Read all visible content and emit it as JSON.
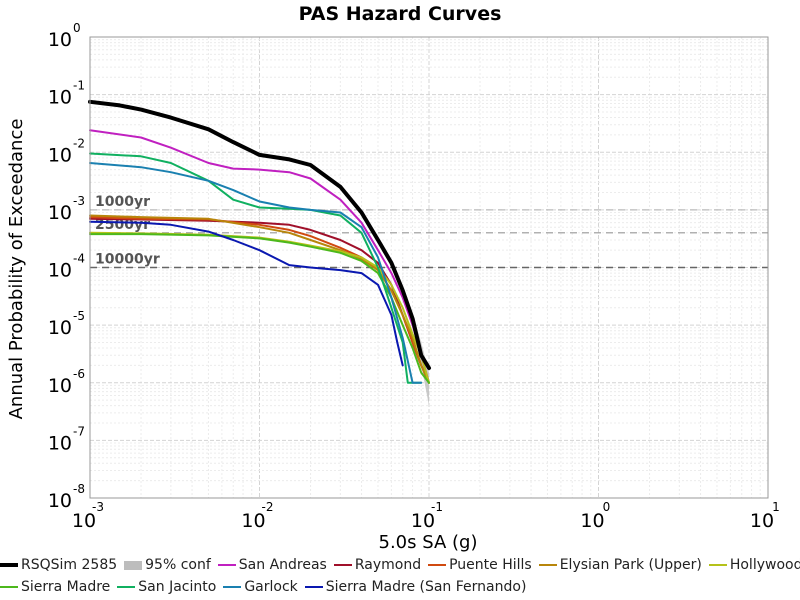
{
  "chart_data": {
    "type": "line",
    "title": "PAS Hazard Curves",
    "xlabel": "5.0s SA (g)",
    "ylabel": "Annual Probability of Exceedance",
    "xscale": "log",
    "yscale": "log",
    "xlim": [
      0.001,
      10
    ],
    "ylim": [
      1e-08,
      1
    ],
    "grid": true,
    "x_ticks": [
      {
        "base": "10",
        "exp": "-3"
      },
      {
        "base": "10",
        "exp": "-2"
      },
      {
        "base": "10",
        "exp": "-1"
      },
      {
        "base": "10",
        "exp": "0"
      },
      {
        "base": "10",
        "exp": "1"
      }
    ],
    "y_ticks": [
      {
        "base": "10",
        "exp": "0"
      },
      {
        "base": "10",
        "exp": "-1"
      },
      {
        "base": "10",
        "exp": "-2"
      },
      {
        "base": "10",
        "exp": "-3"
      },
      {
        "base": "10",
        "exp": "-4"
      },
      {
        "base": "10",
        "exp": "-5"
      },
      {
        "base": "10",
        "exp": "-6"
      },
      {
        "base": "10",
        "exp": "-7"
      },
      {
        "base": "10",
        "exp": "-8"
      }
    ],
    "return_periods": [
      {
        "label": "1000yr",
        "y": 0.001
      },
      {
        "label": "2500yr",
        "y": 0.0004
      },
      {
        "label": "10000yr",
        "y": 0.0001
      }
    ],
    "confidence_band": {
      "name": "95% conf",
      "color": "#bdbdbd",
      "x": [
        0.06,
        0.07,
        0.08,
        0.09,
        0.1
      ],
      "upper": [
        0.00013,
        5e-05,
        1.6e-05,
        5e-06,
        1.5e-06
      ],
      "lower": [
        0.00011,
        3.5e-05,
        1e-05,
        2e-06,
        4e-07
      ]
    },
    "series": [
      {
        "name": "RSQSim 2585",
        "color": "#000000",
        "width": 4,
        "x": [
          0.001,
          0.0015,
          0.002,
          0.003,
          0.005,
          0.007,
          0.01,
          0.015,
          0.02,
          0.03,
          0.04,
          0.05,
          0.06,
          0.07,
          0.08,
          0.09,
          0.1
        ],
        "y": [
          0.075,
          0.065,
          0.055,
          0.04,
          0.025,
          0.015,
          0.009,
          0.0075,
          0.006,
          0.0025,
          0.0009,
          0.0003,
          0.00012,
          4e-05,
          1.3e-05,
          3e-06,
          1.8e-06
        ]
      },
      {
        "name": "San Andreas",
        "color": "#c020c0",
        "width": 2,
        "x": [
          0.001,
          0.002,
          0.003,
          0.005,
          0.007,
          0.01,
          0.015,
          0.02,
          0.03,
          0.04,
          0.05,
          0.06,
          0.07,
          0.08,
          0.09,
          0.1
        ],
        "y": [
          0.024,
          0.018,
          0.012,
          0.0065,
          0.0052,
          0.005,
          0.0045,
          0.0035,
          0.0015,
          0.0006,
          0.0002,
          8e-05,
          3e-05,
          1e-05,
          3e-06,
          1e-06
        ]
      },
      {
        "name": "Raymond",
        "color": "#a0102a",
        "width": 2,
        "x": [
          0.001,
          0.002,
          0.005,
          0.01,
          0.015,
          0.02,
          0.03,
          0.04,
          0.05,
          0.06,
          0.07,
          0.08,
          0.09,
          0.1
        ],
        "y": [
          0.0007,
          0.00068,
          0.00065,
          0.0006,
          0.00055,
          0.00045,
          0.0003,
          0.0002,
          0.00012,
          5e-05,
          1.5e-05,
          5e-06,
          2e-06,
          1e-06
        ]
      },
      {
        "name": "Puente Hills",
        "color": "#d04a10",
        "width": 2,
        "x": [
          0.001,
          0.002,
          0.005,
          0.01,
          0.015,
          0.02,
          0.03,
          0.04,
          0.05,
          0.06,
          0.07,
          0.08,
          0.09,
          0.1
        ],
        "y": [
          0.00075,
          0.0007,
          0.00068,
          0.00055,
          0.00045,
          0.00035,
          0.00022,
          0.00015,
          9e-05,
          4e-05,
          1.5e-05,
          5e-06,
          2e-06,
          1e-06
        ]
      },
      {
        "name": "Elysian Park (Upper)",
        "color": "#b8860b",
        "width": 2,
        "x": [
          0.001,
          0.002,
          0.005,
          0.01,
          0.015,
          0.02,
          0.03,
          0.04,
          0.05,
          0.06,
          0.07,
          0.08,
          0.09,
          0.1
        ],
        "y": [
          0.0008,
          0.00075,
          0.0007,
          0.0005,
          0.0004,
          0.0003,
          0.0002,
          0.00014,
          9e-05,
          4e-05,
          1.5e-05,
          6e-06,
          2e-06,
          1e-06
        ]
      },
      {
        "name": "Hollywood",
        "color": "#b5c21a",
        "width": 2,
        "x": [
          0.001,
          0.002,
          0.005,
          0.01,
          0.015,
          0.02,
          0.03,
          0.04,
          0.05,
          0.06,
          0.07,
          0.08,
          0.09,
          0.1
        ],
        "y": [
          0.0004,
          0.00039,
          0.00037,
          0.00033,
          0.00028,
          0.00024,
          0.00019,
          0.00015,
          0.0001,
          5e-05,
          2e-05,
          7e-06,
          3e-06,
          1e-06
        ]
      },
      {
        "name": "Sierra Madre",
        "color": "#4cb81c",
        "width": 2,
        "x": [
          0.001,
          0.002,
          0.005,
          0.01,
          0.015,
          0.02,
          0.03,
          0.04,
          0.05,
          0.06,
          0.07,
          0.08,
          0.09,
          0.1
        ],
        "y": [
          0.00038,
          0.00038,
          0.00036,
          0.00032,
          0.00027,
          0.00023,
          0.00018,
          0.00013,
          8e-05,
          3e-05,
          1e-05,
          4e-06,
          1.5e-06,
          1e-06
        ]
      },
      {
        "name": "San Jacinto",
        "color": "#10b060",
        "width": 2,
        "x": [
          0.001,
          0.002,
          0.003,
          0.005,
          0.007,
          0.01,
          0.015,
          0.02,
          0.03,
          0.04,
          0.05,
          0.06,
          0.07,
          0.075,
          0.08,
          0.09
        ],
        "y": [
          0.0095,
          0.0085,
          0.0065,
          0.0032,
          0.0015,
          0.0011,
          0.00105,
          0.001,
          0.0008,
          0.0004,
          0.0001,
          2e-05,
          5e-06,
          1e-06,
          1e-06,
          1e-06
        ]
      },
      {
        "name": "Garlock",
        "color": "#1a80b0",
        "width": 2,
        "x": [
          0.001,
          0.002,
          0.003,
          0.005,
          0.007,
          0.01,
          0.015,
          0.02,
          0.03,
          0.04,
          0.05,
          0.06,
          0.07,
          0.08,
          0.09
        ],
        "y": [
          0.0065,
          0.0055,
          0.0045,
          0.0032,
          0.0022,
          0.0014,
          0.0011,
          0.001,
          0.0009,
          0.0005,
          0.00015,
          3e-05,
          6e-06,
          1e-06,
          1e-06
        ]
      },
      {
        "name": "Sierra Madre (San Fernando)",
        "color": "#0a18b0",
        "width": 2,
        "x": [
          0.001,
          0.002,
          0.003,
          0.005,
          0.007,
          0.01,
          0.015,
          0.02,
          0.03,
          0.04,
          0.05,
          0.06,
          0.065,
          0.07
        ],
        "y": [
          0.00062,
          0.0006,
          0.00055,
          0.00042,
          0.0003,
          0.0002,
          0.00011,
          0.0001,
          9e-05,
          8e-05,
          5e-05,
          1.5e-05,
          5e-06,
          2e-06
        ]
      }
    ],
    "legend_placement": "bottom",
    "legend": [
      {
        "label": "RSQSim 2585",
        "color": "#000000",
        "style": "line-thick"
      },
      {
        "label": "95% conf",
        "color": "#bdbdbd",
        "style": "band"
      },
      {
        "label": "San Andreas",
        "color": "#c020c0",
        "style": "line"
      },
      {
        "label": "Raymond",
        "color": "#a0102a",
        "style": "line"
      },
      {
        "label": "Puente Hills",
        "color": "#d04a10",
        "style": "line"
      },
      {
        "label": "Elysian Park (Upper)",
        "color": "#b8860b",
        "style": "line"
      },
      {
        "label": "Hollywood",
        "color": "#b5c21a",
        "style": "line"
      },
      {
        "label": "Sierra Madre",
        "color": "#4cb81c",
        "style": "line"
      },
      {
        "label": "San Jacinto",
        "color": "#10b060",
        "style": "line"
      },
      {
        "label": "Garlock",
        "color": "#1a80b0",
        "style": "line"
      },
      {
        "label": "Sierra Madre (San Fernando)",
        "color": "#0a18b0",
        "style": "line"
      }
    ]
  }
}
